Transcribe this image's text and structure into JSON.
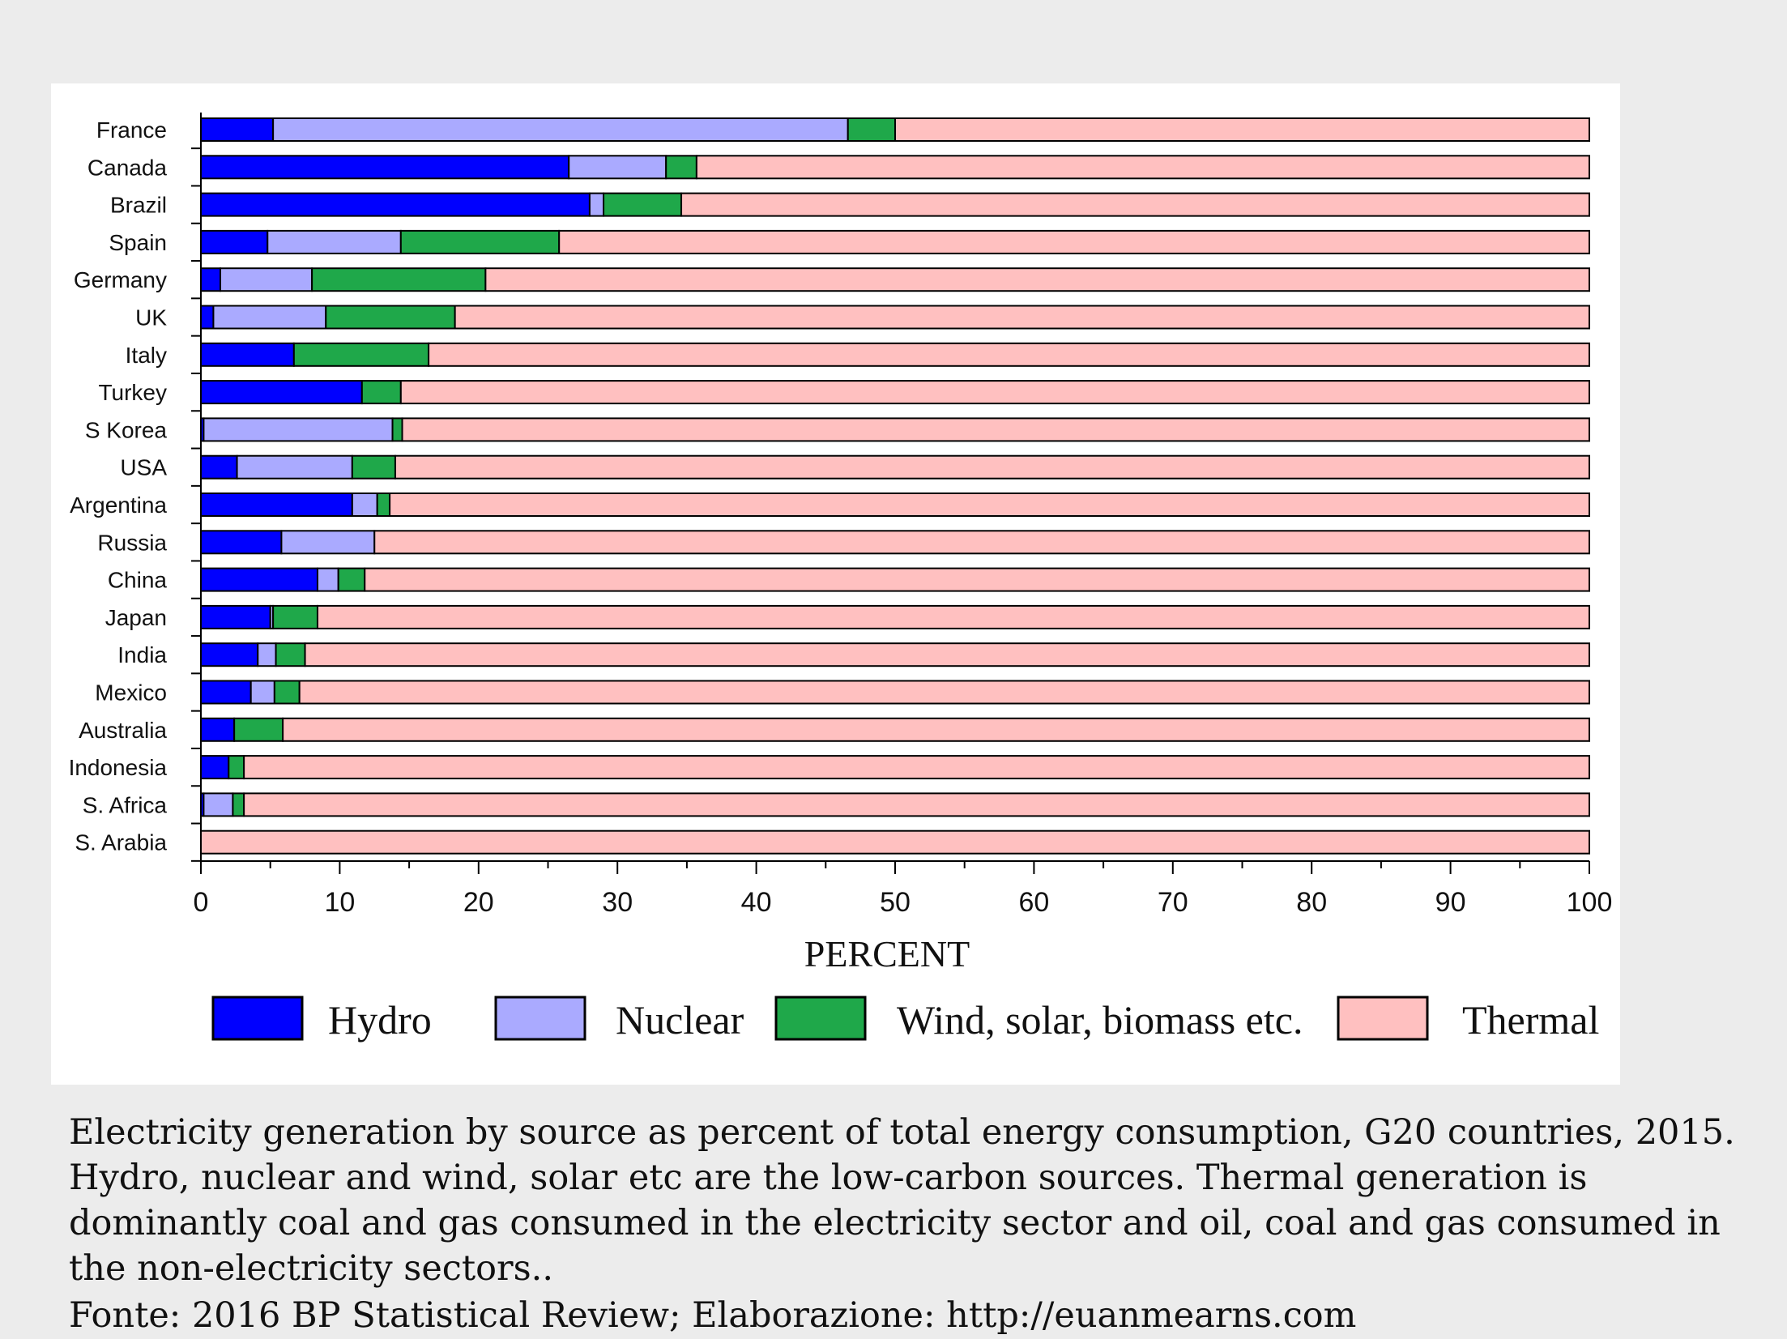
{
  "chart_data": {
    "type": "bar",
    "orientation": "horizontal",
    "stacked": true,
    "categories": [
      "France",
      "Canada",
      "Brazil",
      "Spain",
      "Germany",
      "UK",
      "Italy",
      "Turkey",
      "S Korea",
      "USA",
      "Argentina",
      "Russia",
      "China",
      "Japan",
      "India",
      "Mexico",
      "Australia",
      "Indonesia",
      "S. Africa",
      "S. Arabia"
    ],
    "series": [
      {
        "name": "Hydro",
        "color": "#0000ff",
        "values": [
          5.2,
          26.5,
          28,
          4.8,
          1.4,
          0.9,
          6.7,
          11.6,
          0.2,
          2.6,
          10.9,
          5.8,
          8.4,
          5,
          4.1,
          3.6,
          2.4,
          2,
          0.2,
          0
        ]
      },
      {
        "name": "Nuclear",
        "color": "#aaaaff",
        "values": [
          41.4,
          7,
          1,
          9.6,
          6.6,
          8.1,
          0,
          0,
          13.6,
          8.3,
          1.8,
          6.7,
          1.5,
          0.2,
          1.3,
          1.7,
          0,
          0,
          2.1,
          0
        ]
      },
      {
        "name": "Wind, solar, biomass etc.",
        "color": "#1fa84a",
        "values": [
          3.4,
          2.2,
          5.6,
          11.4,
          12.5,
          9.3,
          9.7,
          2.8,
          0.7,
          3.1,
          0.9,
          0,
          1.9,
          3.2,
          2.1,
          1.8,
          3.5,
          1.1,
          0.8,
          0
        ]
      },
      {
        "name": "Thermal",
        "color": "#ffc0c0",
        "values": [
          50,
          64.3,
          65.4,
          74.2,
          79.5,
          81.7,
          83.6,
          85.6,
          85.5,
          86,
          86.4,
          87.5,
          88.2,
          91.6,
          92.5,
          92.9,
          94.1,
          96.9,
          96.9,
          100
        ]
      }
    ],
    "xlim": [
      0,
      100
    ],
    "xticks": [
      0,
      10,
      20,
      30,
      40,
      50,
      60,
      70,
      80,
      90,
      100
    ],
    "xlabel": "PERCENT",
    "ylabel": "",
    "title": "",
    "legend_position": "bottom",
    "grid": false
  },
  "caption": "Electricity generation by source as percent of total energy consumption, G20 countries, 2015. Hydro, nuclear and wind, solar etc are the low-carbon sources. Thermal generation is dominantly coal and gas consumed in the electricity sector and oil, coal and gas consumed in the non-electricity sectors..",
  "source": "Fonte: 2016 BP Statistical Review; Elaborazione: http://euanmearns.com"
}
